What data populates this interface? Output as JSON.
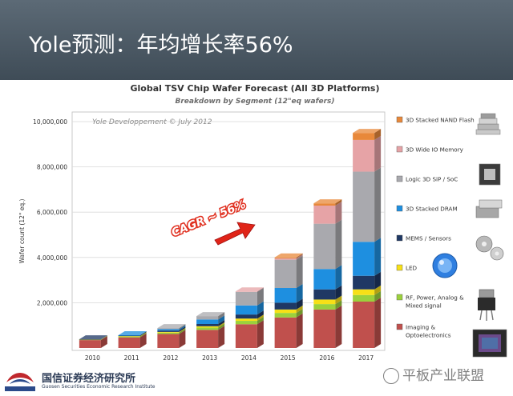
{
  "slide": {
    "title": "Yole预测：年均增长率56%",
    "company": "国信证券经济研究所",
    "company_en": "Guosen Securities Economic Research Institute",
    "watermark": "平板产业联盟"
  },
  "chart_data": {
    "type": "bar",
    "stacked": true,
    "title": "Global TSV Chip Wafer Forecast (All  3D Platforms)",
    "subtitle": "Breakdown by Segment (12\"eq wafers)",
    "source_note": "Yole Developpement © July 2012",
    "ylabel": "Wafer count (12\" eq.)",
    "xlabel": "",
    "ylim": [
      0,
      10000000
    ],
    "yticks": [
      0,
      2000000,
      4000000,
      6000000,
      8000000,
      10000000
    ],
    "ytick_labels": [
      "",
      "2,000,000",
      "4,000,000",
      "6,000,000",
      "8,000,000",
      "10,000,000"
    ],
    "grid": true,
    "legend_position": "right",
    "annotation": "CAGR ~ 56%",
    "categories": [
      "2010",
      "2011",
      "2012",
      "2013",
      "2014",
      "2015",
      "2016",
      "2017"
    ],
    "series": [
      {
        "name": "Imaging & Optoelectronics",
        "color": "#c0504d",
        "values": [
          350000,
          470000,
          620000,
          800000,
          1050000,
          1350000,
          1700000,
          2050000
        ]
      },
      {
        "name": "RF, Power, Analog & Mixed signal",
        "color": "#9bd13c",
        "values": [
          20000,
          40000,
          60000,
          100000,
          150000,
          200000,
          240000,
          290000
        ]
      },
      {
        "name": "LED",
        "color": "#f7e017",
        "values": [
          5000,
          15000,
          30000,
          60000,
          100000,
          150000,
          200000,
          250000
        ]
      },
      {
        "name": "MEMS / Sensors",
        "color": "#1f3864",
        "values": [
          10000,
          30000,
          60000,
          100000,
          180000,
          300000,
          450000,
          600000
        ]
      },
      {
        "name": "3D Stacked DRAM",
        "color": "#1e8fe0",
        "values": [
          0,
          10000,
          60000,
          200000,
          400000,
          650000,
          900000,
          1500000
        ]
      },
      {
        "name": "Logic 3D SiP / SoC",
        "color": "#a9a9ae",
        "values": [
          0,
          0,
          50000,
          150000,
          600000,
          1250000,
          2000000,
          3100000
        ]
      },
      {
        "name": "3D Wide IO Memory",
        "color": "#e6a3a6",
        "values": [
          0,
          0,
          0,
          0,
          20000,
          60000,
          800000,
          1400000
        ]
      },
      {
        "name": "3D Stacked NAND Flash",
        "color": "#e8883a",
        "values": [
          0,
          0,
          0,
          0,
          0,
          40000,
          100000,
          310000
        ]
      }
    ],
    "legend_order": [
      "3D Stacked NAND Flash",
      "3D Wide IO Memory",
      "Logic 3D SiP / SoC",
      "3D Stacked DRAM",
      "MEMS / Sensors",
      "LED",
      "RF, Power, Analog & Mixed signal",
      "Imaging & Optoelectronics"
    ]
  },
  "legend_labels": [
    [
      "3D Stacked NAND Flash"
    ],
    [
      "3D Wide IO Memory"
    ],
    [
      "Logic 3D SiP / SoC"
    ],
    [
      "3D Stacked DRAM"
    ],
    [
      "MEMS / Sensors"
    ],
    [
      "LED"
    ],
    [
      "RF, Power, Analog &",
      "Mixed signal"
    ],
    [
      "Imaging &",
      "Optoelectronics"
    ]
  ]
}
